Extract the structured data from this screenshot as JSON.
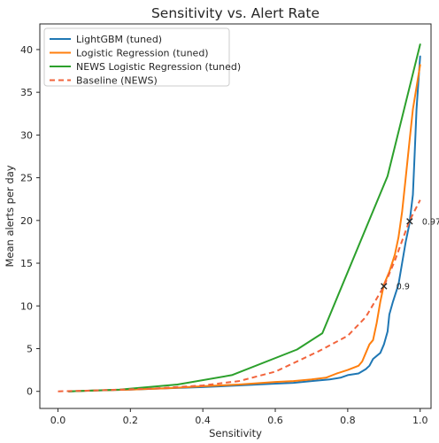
{
  "chart_data": {
    "type": "line",
    "title": "Sensitivity vs. Alert Rate",
    "xlabel": "Sensitivity",
    "ylabel": "Mean alerts per day",
    "xlim": [
      -0.05,
      1.03
    ],
    "ylim": [
      -2,
      43
    ],
    "xticks": [
      "0.0",
      "0.2",
      "0.4",
      "0.6",
      "0.8",
      "1.0"
    ],
    "yticks": [
      "0",
      "5",
      "10",
      "15",
      "20",
      "25",
      "30",
      "35",
      "40"
    ],
    "grid": false,
    "legend_position": "top-left",
    "series": [
      {
        "name": "LightGBM (tuned)",
        "color": "#1f77b4",
        "style": "solid",
        "points": [
          [
            0.03,
            0
          ],
          [
            0.1,
            0.1
          ],
          [
            0.2,
            0.2
          ],
          [
            0.3,
            0.35
          ],
          [
            0.4,
            0.5
          ],
          [
            0.5,
            0.7
          ],
          [
            0.6,
            0.9
          ],
          [
            0.65,
            1.0
          ],
          [
            0.7,
            1.2
          ],
          [
            0.75,
            1.4
          ],
          [
            0.78,
            1.6
          ],
          [
            0.8,
            1.9
          ],
          [
            0.83,
            2.1
          ],
          [
            0.85,
            2.6
          ],
          [
            0.86,
            3.0
          ],
          [
            0.87,
            3.8
          ],
          [
            0.89,
            4.5
          ],
          [
            0.9,
            5.5
          ],
          [
            0.91,
            7.0
          ],
          [
            0.915,
            9.0
          ],
          [
            0.925,
            10.5
          ],
          [
            0.94,
            12.5
          ],
          [
            0.95,
            15.0
          ],
          [
            0.96,
            17.5
          ],
          [
            0.97,
            19.5
          ],
          [
            0.98,
            23.0
          ],
          [
            0.985,
            28.0
          ],
          [
            0.99,
            33.0
          ],
          [
            1.0,
            39.2
          ]
        ]
      },
      {
        "name": "Logistic Regression (tuned)",
        "color": "#ff7f0e",
        "style": "solid",
        "points": [
          [
            0.03,
            0
          ],
          [
            0.1,
            0.1
          ],
          [
            0.2,
            0.2
          ],
          [
            0.3,
            0.35
          ],
          [
            0.4,
            0.6
          ],
          [
            0.5,
            0.8
          ],
          [
            0.6,
            1.1
          ],
          [
            0.65,
            1.2
          ],
          [
            0.7,
            1.4
          ],
          [
            0.74,
            1.6
          ],
          [
            0.77,
            2.1
          ],
          [
            0.8,
            2.5
          ],
          [
            0.83,
            3.0
          ],
          [
            0.84,
            3.5
          ],
          [
            0.85,
            4.5
          ],
          [
            0.86,
            5.5
          ],
          [
            0.87,
            6.0
          ],
          [
            0.88,
            8.0
          ],
          [
            0.89,
            10.5
          ],
          [
            0.9,
            12.5
          ],
          [
            0.915,
            14.0
          ],
          [
            0.93,
            16.0
          ],
          [
            0.94,
            18.0
          ],
          [
            0.95,
            21.0
          ],
          [
            0.96,
            25.0
          ],
          [
            0.97,
            29.0
          ],
          [
            0.98,
            33.0
          ],
          [
            1.0,
            38.2
          ]
        ]
      },
      {
        "name": "NEWS Logistic Regression (tuned)",
        "color": "#2ca02c",
        "style": "solid",
        "points": [
          [
            0.03,
            0
          ],
          [
            0.17,
            0.2
          ],
          [
            0.33,
            0.8
          ],
          [
            0.48,
            1.9
          ],
          [
            0.66,
            4.9
          ],
          [
            0.73,
            6.8
          ],
          [
            0.91,
            25.2
          ],
          [
            1.0,
            40.6
          ]
        ]
      },
      {
        "name": "Baseline (NEWS)",
        "color": "#f2643c",
        "style": "dashed",
        "points": [
          [
            0.0,
            0
          ],
          [
            0.1,
            0.1
          ],
          [
            0.25,
            0.3
          ],
          [
            0.4,
            0.7
          ],
          [
            0.5,
            1.2
          ],
          [
            0.6,
            2.3
          ],
          [
            0.65,
            3.3
          ],
          [
            0.72,
            4.7
          ],
          [
            0.8,
            6.5
          ],
          [
            0.85,
            8.7
          ],
          [
            0.9,
            12.3
          ],
          [
            0.93,
            15.3
          ],
          [
            0.97,
            19.9
          ],
          [
            1.0,
            22.4
          ]
        ]
      }
    ],
    "annotations": [
      {
        "label": "0.9",
        "x": 0.9,
        "y": 12.3
      },
      {
        "label": "0.971",
        "x": 0.971,
        "y": 19.9
      }
    ]
  }
}
